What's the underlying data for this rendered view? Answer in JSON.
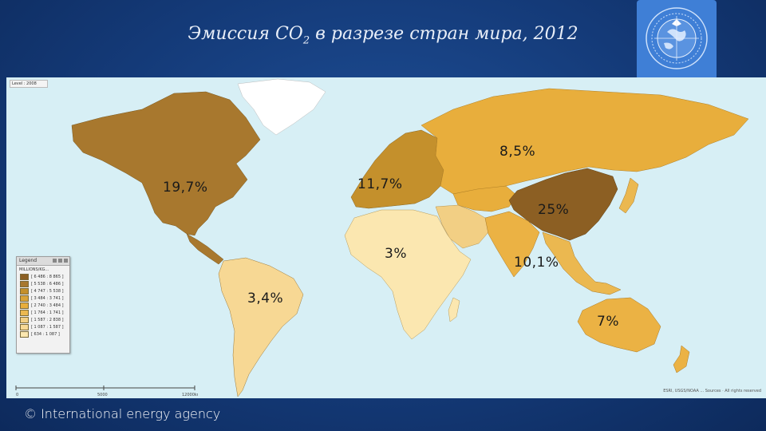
{
  "title": {
    "prefix": "Эмиссия СО",
    "subscript": "2",
    "suffix": " в разрезе стран мира, 2012"
  },
  "map": {
    "level_label": "Level : 2008",
    "labels": {
      "north_america": "19,7%",
      "europe": "11,7%",
      "eurasia": "8,5%",
      "china": "25%",
      "africa": "3%",
      "asia_pacific": "10,1%",
      "latin_america": "3,4%",
      "oceania": "7%"
    },
    "colors": {
      "ocean": "#d7eff5",
      "north_america": "#a8782e",
      "europe": "#c4902c",
      "eurasia": "#e8ae3c",
      "china": "#8c5f23",
      "middle_east": "#f2cf84",
      "south_asia": "#ebb244",
      "southeast_asia": "#ebb850",
      "africa": "#fbe7b0",
      "latin_america": "#f7d894",
      "oceania": "#ebb244",
      "greenland": "#ffffff"
    },
    "legend": {
      "title": "Legend",
      "subtitle": "MILLIONS/KG...",
      "items": [
        {
          "range": "[ 6 486 : 8 865 ]",
          "color": "#8c5f23"
        },
        {
          "range": "[ 5 538 : 6 486 ]",
          "color": "#a8782e"
        },
        {
          "range": "[ 4 747 : 5 538 ]",
          "color": "#c4902c"
        },
        {
          "range": "[ 3 484 : 3 741 ]",
          "color": "#d9a338"
        },
        {
          "range": "[ 2 740 : 3 484 ]",
          "color": "#e8ae3c"
        },
        {
          "range": "[ 1 764 : 1 741 ]",
          "color": "#ebb850"
        },
        {
          "range": "[ 1 587 : 2 838 ]",
          "color": "#f2cf84"
        },
        {
          "range": "[ 1 087 : 1 587 ]",
          "color": "#f7d894"
        },
        {
          "range": "[ 634 : 1 087 ]",
          "color": "#fbe7b0"
        }
      ]
    },
    "scale": {
      "zero": "0",
      "mid": "5000",
      "end": "12000km"
    },
    "attribution": "ESRI, USGS/NOAA ... Sources · All rights reserved"
  },
  "footer": {
    "copyright": "© International energy agency"
  }
}
